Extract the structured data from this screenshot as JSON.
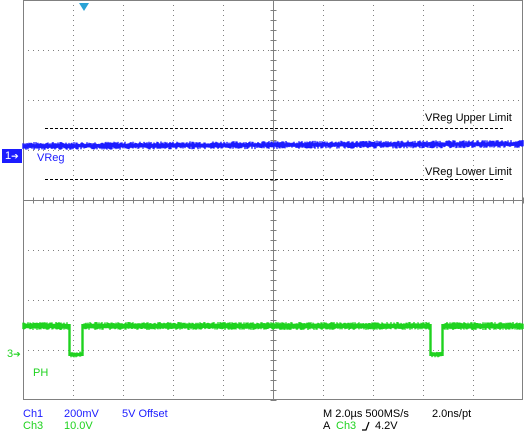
{
  "reference_lines": {
    "upper_label": "VReg Upper Limit",
    "lower_label": "VReg Lower Limit"
  },
  "channels": {
    "ch1": {
      "marker": "1",
      "label": "VReg",
      "color": "#1c1cff"
    },
    "ch3": {
      "marker": "3",
      "label": "PH",
      "color": "#1fd21f"
    }
  },
  "status": {
    "ch1_name": "Ch1",
    "ch1_scale": "200mV",
    "ch1_offset": "5V Offset",
    "ch3_name": "Ch3",
    "ch3_scale": "10.0V",
    "timebase": "M 2.0µs 500MS/s",
    "sample_interval": "2.0ns/pt",
    "trigger_prefix": "A",
    "trigger_source": "Ch3",
    "trigger_slope_icon": "rising-edge-icon",
    "trigger_level": "4.2V"
  },
  "trigger_position_icon": "trigger-marker-icon",
  "colors": {
    "grid": "#808080",
    "ch1": "#1c1cff",
    "ch3": "#1fd21f",
    "trigger_marker": "#2aa3d6"
  }
}
